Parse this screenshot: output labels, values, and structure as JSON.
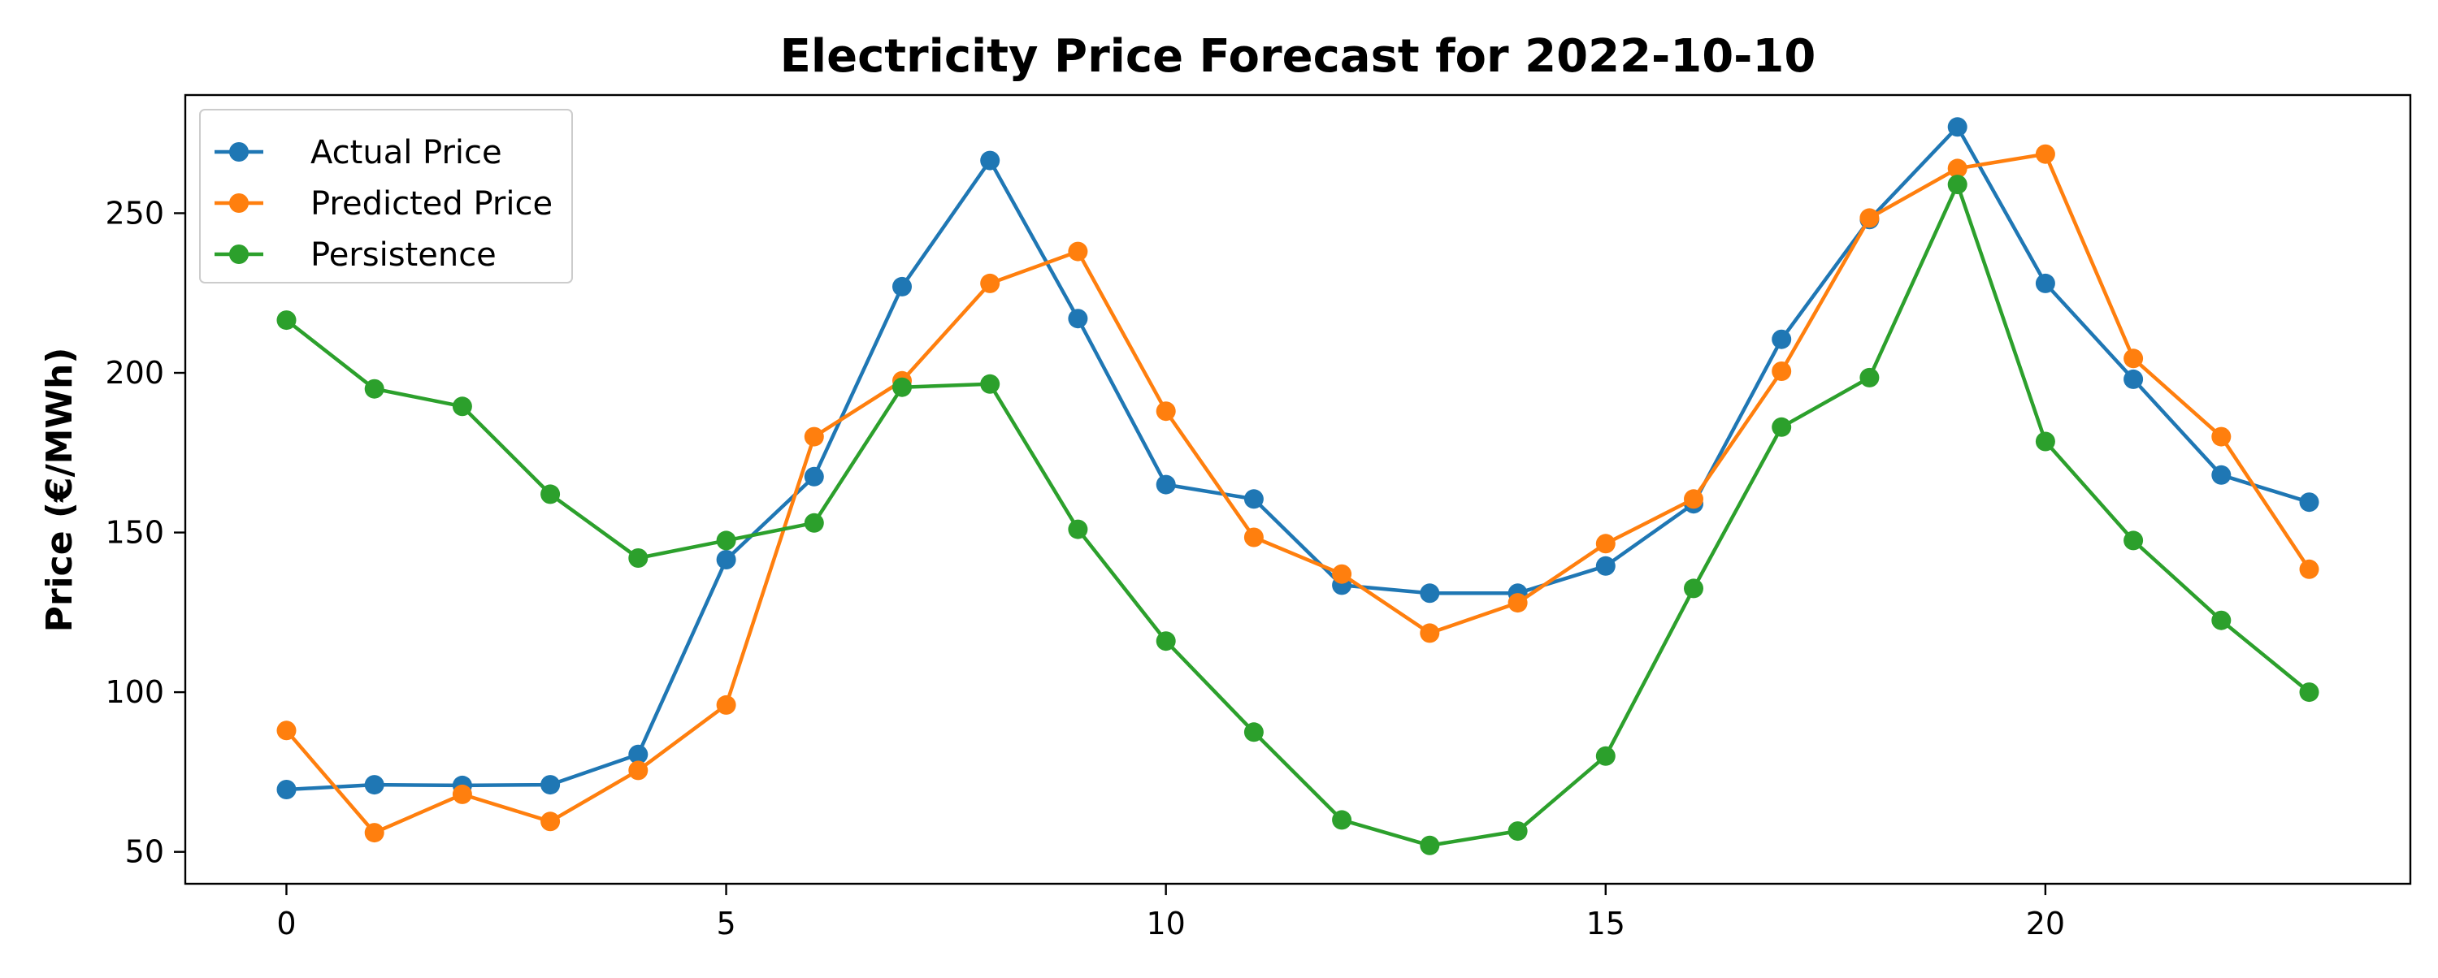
{
  "chart_data": {
    "type": "line",
    "title": "Electricity Price Forecast for 2022-10-10",
    "xlabel": "",
    "ylabel": "Price (€/MWh)",
    "x": [
      0,
      1,
      2,
      3,
      4,
      5,
      6,
      7,
      8,
      9,
      10,
      11,
      12,
      13,
      14,
      15,
      16,
      17,
      18,
      19,
      20,
      21,
      22,
      23
    ],
    "xlim": [
      -1.15,
      24.15
    ],
    "ylim": [
      40,
      287
    ],
    "xticks": [
      0,
      5,
      10,
      15,
      20
    ],
    "yticks": [
      50,
      100,
      150,
      200,
      250
    ],
    "grid": false,
    "legend_position": "top-left",
    "series": [
      {
        "name": "Actual Price",
        "color": "#1f77b4",
        "values": [
          69.5,
          71,
          70.8,
          71,
          80.5,
          141.5,
          167.5,
          227,
          266.5,
          217,
          165,
          160.5,
          133.5,
          131,
          131,
          139.5,
          159,
          210.5,
          248,
          277,
          228,
          198,
          168,
          159.5
        ]
      },
      {
        "name": "Predicted Price",
        "color": "#ff7f0e",
        "values": [
          88,
          56,
          68,
          59.5,
          75.5,
          96,
          180,
          197.5,
          228,
          238,
          188,
          148.5,
          137,
          118.5,
          128,
          146.5,
          160.5,
          200.5,
          248.5,
          264,
          268.5,
          204.5,
          180,
          138.5
        ]
      },
      {
        "name": "Persistence",
        "color": "#2ca02c",
        "values": [
          216.5,
          195,
          189.5,
          162,
          142,
          147.5,
          153,
          195.5,
          196.5,
          151,
          116,
          87.5,
          60,
          52,
          56.5,
          80,
          132.5,
          183,
          198.5,
          259,
          178.5,
          147.5,
          122.5,
          100
        ]
      }
    ]
  }
}
